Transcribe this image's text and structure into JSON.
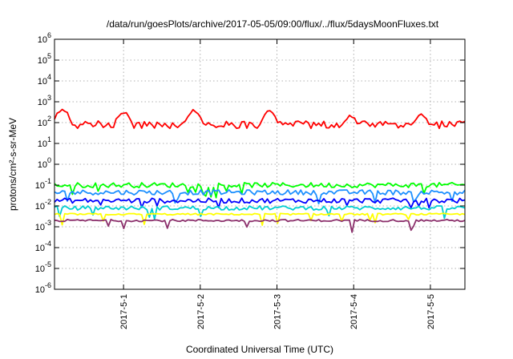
{
  "chart_data": {
    "type": "line",
    "title": "/data/run/goesPlots/archive/2017-05-05/09:00/flux/../flux/5daysMoonFluxes.txt",
    "xlabel": "Coordinated Universal Time (UTC)",
    "ylabel": "protons/cm²-s-sr-MeV",
    "yscale": "log",
    "ylim": [
      1e-06,
      1000000.0
    ],
    "xlim": [
      -0.9,
      4.45
    ],
    "x_ticks": [
      0,
      1,
      2,
      3,
      4
    ],
    "x_tick_labels": [
      "2017-5-1",
      "2017-5-2",
      "2017-5-3",
      "2017-5-4",
      "2017-5-5"
    ],
    "y_ticks": [
      {
        "base": "10",
        "exp": "-6",
        "value": 1e-06
      },
      {
        "base": "10",
        "exp": "-5",
        "value": 1e-05
      },
      {
        "base": "10",
        "exp": "-4",
        "value": 0.0001
      },
      {
        "base": "10",
        "exp": "-3",
        "value": 0.001
      },
      {
        "base": "10",
        "exp": "-2",
        "value": 0.01
      },
      {
        "base": "10",
        "exp": "-1",
        "value": 0.1
      },
      {
        "base": "10",
        "exp": "0",
        "value": 1
      },
      {
        "base": "10",
        "exp": "1",
        "value": 10
      },
      {
        "base": "10",
        "exp": "2",
        "value": 100
      },
      {
        "base": "10",
        "exp": "3",
        "value": 1000
      },
      {
        "base": "10",
        "exp": "4",
        "value": 10000
      },
      {
        "base": "10",
        "exp": "5",
        "value": 100000
      },
      {
        "base": "10",
        "exp": "6",
        "value": 1000000
      }
    ],
    "grid": true,
    "legend": "none",
    "series": [
      {
        "color": "#ff0000",
        "center": 80,
        "noise": 0.18,
        "bumps": [
          [
            -0.8,
            2.6
          ],
          [
            0.0,
            2.5
          ],
          [
            0.92,
            2.6
          ],
          [
            1.9,
            2.5
          ],
          [
            2.95,
            2.3
          ],
          [
            3.88,
            2.4
          ]
        ]
      },
      {
        "color": "#00ff00",
        "center": 0.1,
        "noise": 0.12,
        "bumps": []
      },
      {
        "color": "#1e90ff",
        "center": 0.045,
        "noise": 0.12,
        "bumps": []
      },
      {
        "color": "#0000ff",
        "center": 0.018,
        "noise": 0.12,
        "bumps": []
      },
      {
        "color": "#00ced1",
        "center": 0.008,
        "noise": 0.1,
        "bumps": []
      },
      {
        "color": "#ffff00",
        "center": 0.004,
        "noise": 0.04,
        "bumps": []
      },
      {
        "color": "#8b2f6b",
        "center": 0.002,
        "noise": 0.05,
        "bumps": []
      }
    ]
  }
}
